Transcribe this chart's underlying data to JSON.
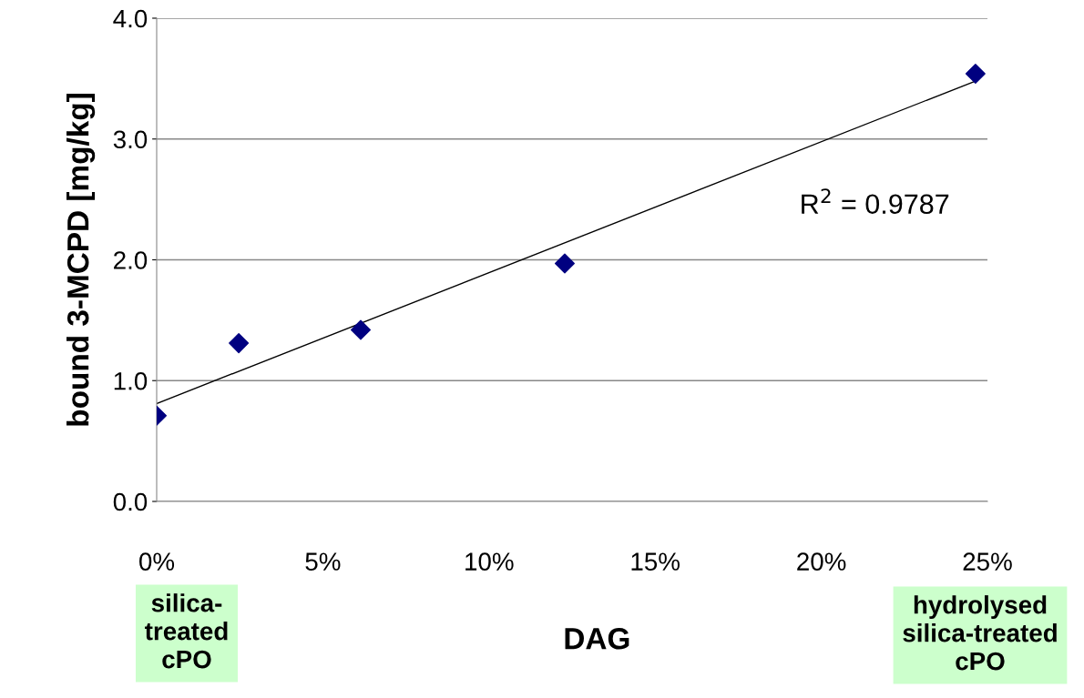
{
  "chart_data": {
    "type": "scatter",
    "xlabel": "DAG",
    "ylabel": "bound 3-MCPD [mg/kg]",
    "annotations": [
      "R$^{2}$ = 0.9787",
      "silica-\ntreated\ncPO",
      "hydrolysed\nsilica-treated\ncPO"
    ],
    "series": [
      {
        "color": "#000080",
        "x": [
          0,
          2.47,
          6.14,
          12.28,
          24.64
        ],
        "values": [
          0.71,
          1.31,
          1.42,
          1.97,
          3.54
        ]
      },
      {
        "type": "line",
        "color": "#000000",
        "marker": "none",
        "x": [
          0,
          24.64
        ],
        "values": [
          0.81,
          3.48
        ]
      }
    ],
    "marker": "diamond",
    "xlim": [
      0,
      25
    ],
    "xticks": [
      {
        "value": 0,
        "label": "0%"
      },
      {
        "value": 5,
        "label": "5%"
      },
      {
        "value": 10,
        "label": "10%"
      },
      {
        "value": 15,
        "label": "15%"
      },
      {
        "value": 20,
        "label": "20%"
      },
      {
        "value": 25,
        "label": "25%"
      }
    ],
    "ylim": [
      0,
      4
    ],
    "yticks": [
      {
        "value": 0,
        "label": "0.0"
      },
      {
        "value": 1,
        "label": "1.0"
      },
      {
        "value": 2,
        "label": "2.0"
      },
      {
        "value": 3,
        "label": "3.0"
      },
      {
        "value": 4,
        "label": "4.0"
      }
    ],
    "grid": "y",
    "legend": false
  }
}
